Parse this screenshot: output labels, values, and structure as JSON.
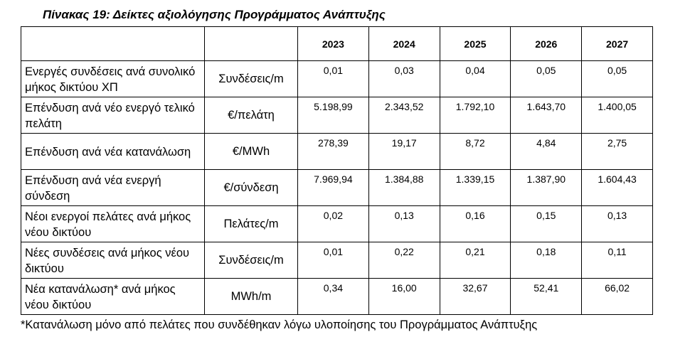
{
  "title": "Πίνακας 19: Δείκτες αξιολόγησης Προγράμματος Ανάπτυξης",
  "years": [
    "2023",
    "2024",
    "2025",
    "2026",
    "2027"
  ],
  "rows": [
    {
      "label": "Ενεργές συνδέσεις ανά συνολικό μήκος δικτύου ΧΠ",
      "unit": "Συνδέσεις/m",
      "values": [
        "0,01",
        "0,03",
        "0,04",
        "0,05",
        "0,05"
      ]
    },
    {
      "label": "Επένδυση ανά νέο ενεργό τελικό πελάτη",
      "unit": "€/πελάτη",
      "values": [
        "5.198,99",
        "2.343,52",
        "1.792,10",
        "1.643,70",
        "1.400,05"
      ]
    },
    {
      "label": "Επένδυση ανά νέα κατανάλωση",
      "unit": "€/MWh",
      "values": [
        "278,39",
        "19,17",
        "8,72",
        "4,84",
        "2,75"
      ]
    },
    {
      "label": "Επένδυση ανά νέα ενεργή σύνδεση",
      "unit": "€/σύνδεση",
      "values": [
        "7.969,94",
        "1.384,88",
        "1.339,15",
        "1.387,90",
        "1.604,43"
      ]
    },
    {
      "label": "Νέοι ενεργοί πελάτες ανά μήκος νέου δικτύου",
      "unit": "Πελάτες/m",
      "values": [
        "0,02",
        "0,13",
        "0,16",
        "0,15",
        "0,13"
      ]
    },
    {
      "label": "Νέες συνδέσεις ανά μήκος νέου δικτύου",
      "unit": "Συνδέσεις/m",
      "values": [
        "0,01",
        "0,22",
        "0,21",
        "0,18",
        "0,11"
      ]
    },
    {
      "label": "Νέα κατανάλωση* ανά μήκος νέου δικτύου",
      "unit": "MWh/m",
      "values": [
        "0,34",
        "16,00",
        "32,67",
        "52,41",
        "66,02"
      ]
    }
  ],
  "footnote": "*Κατανάλωση μόνο από πελάτες που συνδέθηκαν λόγω υλοποίησης του Προγράμματος Ανάπτυξης"
}
